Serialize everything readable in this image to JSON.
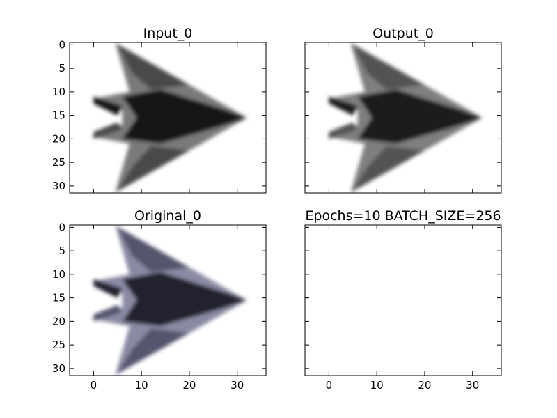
{
  "figure": {
    "background": "#ffffff"
  },
  "chart_data": [
    {
      "type": "image",
      "title": "Input_0",
      "image_description": "grayscale image of a dark stealth aircraft pointing right on a white background",
      "colormap": "gray",
      "xlim": [
        -5,
        36
      ],
      "ylim": [
        31.5,
        -0.5
      ],
      "xticks": [
        0,
        10,
        20,
        30
      ],
      "yticks": [
        0,
        5,
        10,
        15,
        20,
        25,
        30
      ],
      "show_x_tick_labels": false,
      "show_y_tick_labels": true
    },
    {
      "type": "image",
      "title": "Output_0",
      "image_description": "reconstructed grayscale stealth aircraft image, slightly smoother than the input",
      "colormap": "gray",
      "xlim": [
        -5,
        36
      ],
      "ylim": [
        31.5,
        -0.5
      ],
      "xticks": [
        0,
        10,
        20,
        30
      ],
      "yticks": [
        0,
        5,
        10,
        15,
        20,
        25,
        30
      ],
      "show_x_tick_labels": false,
      "show_y_tick_labels": false
    },
    {
      "type": "image",
      "title": "Original_0",
      "image_description": "original color (bluish-gray) image of a stealth aircraft pointing right",
      "colormap": "rgb",
      "xlim": [
        -5,
        36
      ],
      "ylim": [
        31.5,
        -0.5
      ],
      "xticks": [
        0,
        10,
        20,
        30
      ],
      "yticks": [
        0,
        5,
        10,
        15,
        20,
        25,
        30
      ],
      "show_x_tick_labels": true,
      "show_y_tick_labels": true
    },
    {
      "type": "empty",
      "title": "Epochs=10 BATCH_SIZE=256",
      "xlim": [
        -5,
        36
      ],
      "ylim": [
        31.5,
        -0.5
      ],
      "xticks": [
        0,
        10,
        20,
        30
      ],
      "yticks": [
        0,
        5,
        10,
        15,
        20,
        25,
        30
      ],
      "show_x_tick_labels": true,
      "show_y_tick_labels": false
    }
  ]
}
